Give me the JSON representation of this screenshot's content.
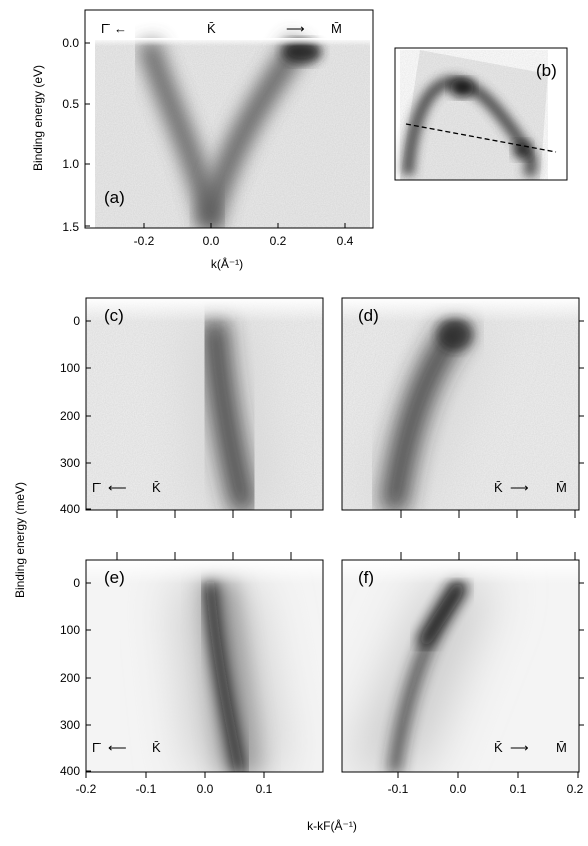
{
  "figure": {
    "panel_labels": [
      "(a)",
      "(b)",
      "(c)",
      "(d)",
      "(e)",
      "(f)"
    ],
    "colors": {
      "ink": "#000000",
      "band": "#1a1a1a",
      "background": "#ffffff"
    }
  },
  "panel_a": {
    "label": "(a)",
    "y_axis_title": "Binding energy (eV)",
    "x_axis_title": "k(Å⁻¹)",
    "y_ticks": [
      "0.0",
      "0.5",
      "1.0",
      "1.5"
    ],
    "x_ticks": [
      "-0.2",
      "0.0",
      "0.2",
      "0.4"
    ],
    "dir_left": {
      "point": "Γ̄",
      "arrow": "←"
    },
    "dir_center": "K̄",
    "dir_right": {
      "arrow": "⟶",
      "point": "M̄"
    }
  },
  "panel_b": {
    "label": "(b)"
  },
  "panel_c": {
    "label": "(c)",
    "dir": {
      "from": "Γ̄",
      "arrow": "⟵",
      "to": "K̄"
    }
  },
  "panel_d": {
    "label": "(d)",
    "dir": {
      "from": "K̄",
      "arrow": "⟶",
      "to": "M̄"
    }
  },
  "panel_e": {
    "label": "(e)",
    "dir": {
      "from": "Γ̄",
      "arrow": "⟵",
      "to": "K̄"
    }
  },
  "panel_f": {
    "label": "(f)",
    "dir": {
      "from": "K̄",
      "arrow": "⟶",
      "to": "M̄"
    }
  },
  "lower_axes": {
    "y_axis_title": "Binding energy (meV)",
    "y_ticks": [
      "0",
      "100",
      "200",
      "300",
      "400"
    ],
    "x_ticks_left": [
      "-0.2",
      "-0.1",
      "0.0",
      "0.1"
    ],
    "x_ticks_right": [
      "-0.1",
      "0.0",
      "0.1",
      "0.2"
    ],
    "x_axis_title": "k-kF(Å⁻¹)"
  },
  "chart_data": [
    {
      "type": "heatmap",
      "panel": "a",
      "xlabel": "k(Å⁻¹)",
      "ylabel": "Binding energy (eV)",
      "xlim": [
        -0.35,
        0.46
      ],
      "ylim": [
        1.5,
        0.0
      ],
      "bands": [
        {
          "points": [
            [
              -0.22,
              0.0
            ],
            [
              -0.1,
              0.5
            ],
            [
              0.0,
              1.0
            ],
            [
              0.02,
              1.5
            ]
          ]
        },
        {
          "points": [
            [
              0.3,
              0.0
            ],
            [
              0.12,
              0.5
            ],
            [
              0.02,
              1.0
            ],
            [
              0.0,
              1.5
            ]
          ]
        }
      ]
    },
    {
      "type": "heatmap",
      "panel": "c",
      "xlabel": "k-kF(Å⁻¹)",
      "ylabel": "Binding energy (meV)",
      "xlim": [
        -0.2,
        0.2
      ],
      "ylim": [
        450,
        -20
      ],
      "bands": [
        {
          "points": [
            [
              0.0,
              0
            ],
            [
              0.01,
              100
            ],
            [
              0.03,
              200
            ],
            [
              0.05,
              300
            ],
            [
              0.06,
              400
            ],
            [
              0.07,
              450
            ]
          ]
        }
      ]
    },
    {
      "type": "heatmap",
      "panel": "d",
      "xlabel": "k-kF(Å⁻¹)",
      "ylabel": "Binding energy (meV)",
      "xlim": [
        -0.2,
        0.2
      ],
      "ylim": [
        450,
        -20
      ],
      "bands": [
        {
          "points": [
            [
              0.0,
              0
            ],
            [
              -0.05,
              100
            ],
            [
              -0.1,
              200
            ],
            [
              -0.13,
              300
            ],
            [
              -0.15,
              400
            ],
            [
              -0.16,
              450
            ]
          ]
        }
      ]
    },
    {
      "type": "heatmap",
      "panel": "e",
      "xlabel": "k-kF(Å⁻¹)",
      "ylabel": "Binding energy (meV)",
      "xlim": [
        -0.2,
        0.2
      ],
      "ylim": [
        450,
        -20
      ],
      "bands": [
        {
          "points": [
            [
              0.0,
              0
            ],
            [
              0.01,
              100
            ],
            [
              0.03,
              200
            ],
            [
              0.05,
              300
            ],
            [
              0.06,
              400
            ],
            [
              0.07,
              450
            ]
          ]
        }
      ]
    },
    {
      "type": "heatmap",
      "panel": "f",
      "xlabel": "k-kF(Å⁻¹)",
      "ylabel": "Binding energy (meV)",
      "xlim": [
        -0.2,
        0.2
      ],
      "ylim": [
        450,
        -20
      ],
      "bands": [
        {
          "points": [
            [
              0.0,
              0
            ],
            [
              -0.05,
              100
            ],
            [
              -0.1,
              200
            ],
            [
              -0.13,
              300
            ],
            [
              -0.15,
              400
            ],
            [
              -0.16,
              450
            ]
          ]
        }
      ]
    }
  ]
}
